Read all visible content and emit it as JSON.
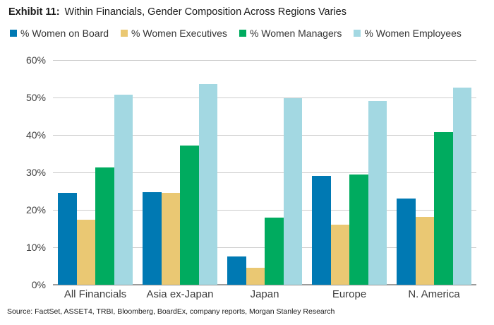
{
  "title": {
    "prefix": "Exhibit 11:",
    "text": "Within Financials, Gender Composition Across Regions Varies"
  },
  "source": "Source: FactSet, ASSET4, TRBI, Bloomberg, BoardEx, company reports, Morgan Stanley Research",
  "colors": {
    "board_blue": "#0079b3",
    "executives_gold": "#eac873",
    "managers_green": "#00ab5f",
    "employees_lightblue": "#a3d8e2",
    "gridline": "#cccccc",
    "axis": "#9b9b9b",
    "text_dark": "#1a1a1a",
    "tick_text": "#404040"
  },
  "chart_data": {
    "type": "bar",
    "title": "Exhibit 11: Within Financials, Gender Composition Across Regions Varies",
    "categories": [
      "All Financials",
      "Asia ex-Japan",
      "Japan",
      "Europe",
      "N. America"
    ],
    "series": [
      {
        "name": "% Women on Board",
        "color": "#0079b3",
        "values": [
          24.5,
          24.7,
          7.5,
          29.1,
          23.1
        ]
      },
      {
        "name": "% Women Executives",
        "color": "#eac873",
        "values": [
          17.4,
          24.5,
          4.5,
          16.1,
          18.2
        ]
      },
      {
        "name": "% Women Managers",
        "color": "#00ab5f",
        "values": [
          31.3,
          37.2,
          17.9,
          29.4,
          40.7
        ]
      },
      {
        "name": "% Women Employees",
        "color": "#a3d8e2",
        "values": [
          50.8,
          53.5,
          49.8,
          49.0,
          52.6
        ]
      }
    ],
    "xlabel": "",
    "ylabel": "",
    "ylim": [
      0,
      60
    ],
    "ytick_step": 10,
    "yticks": [
      "0%",
      "10%",
      "20%",
      "30%",
      "40%",
      "50%",
      "60%"
    ],
    "grid": true,
    "legend_position": "top"
  }
}
